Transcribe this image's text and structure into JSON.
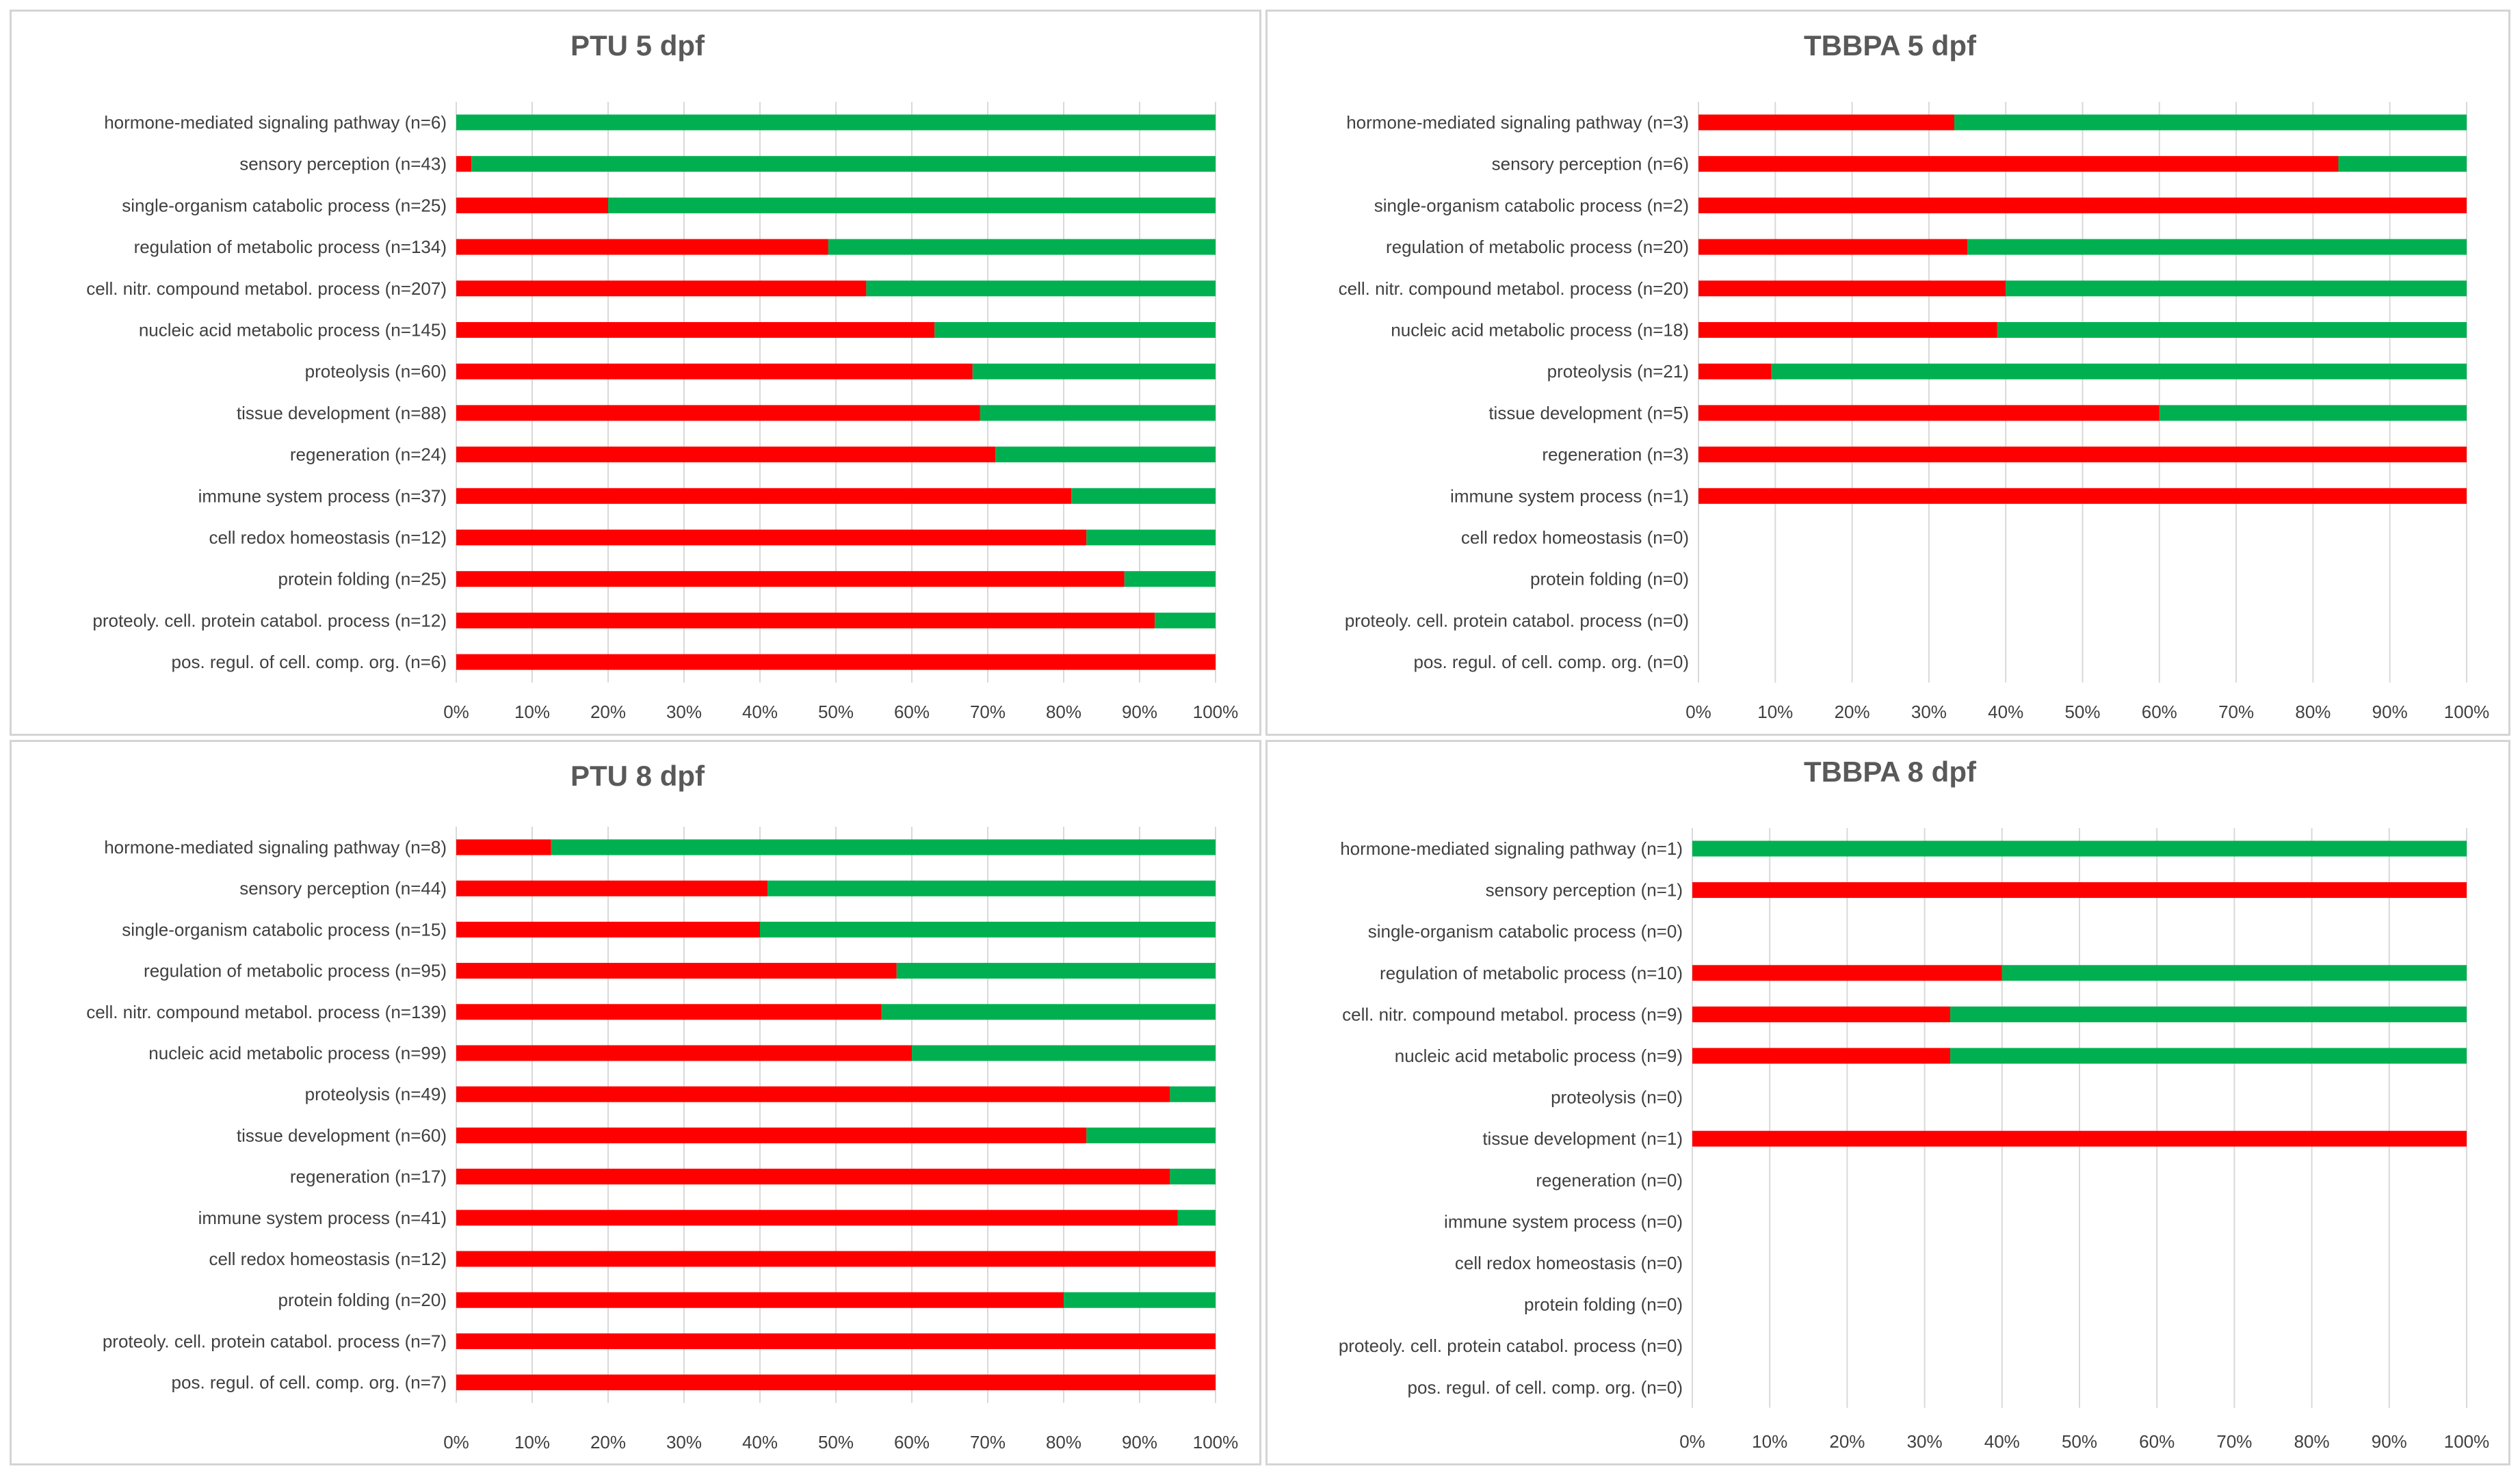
{
  "colors": {
    "negative": "#ff0000",
    "positive": "#00b050",
    "grid": "#d9d9d9",
    "text": "#404040",
    "title": "#595959"
  },
  "chart_data": [
    {
      "type": "bar",
      "orientation": "horizontal",
      "stacked": "percent",
      "title": "PTU 5 dpf",
      "categories": [
        "hormone-mediated signaling pathway (n=6)",
        "sensory perception (n=43)",
        "single-organism catabolic process (n=25)",
        "regulation of metabolic process (n=134)",
        "cell. nitr. compound metabol. process (n=207)",
        "nucleic acid metabolic process (n=145)",
        "proteolysis (n=60)",
        "tissue development (n=88)",
        "regeneration (n=24)",
        "immune system process (n=37)",
        "cell redox homeostasis (n=12)",
        "protein folding (n=25)",
        "proteoly. cell. protein catabol. process (n=12)",
        "pos. regul. of cell. comp. org. (n=6)"
      ],
      "series": [
        {
          "color": "#ff0000",
          "values": [
            0,
            2,
            20,
            49,
            54,
            63,
            68,
            69,
            71,
            81,
            83,
            88,
            92,
            100
          ]
        },
        {
          "color": "#00b050",
          "values": [
            100,
            98,
            80,
            51,
            46,
            37,
            32,
            31,
            29,
            19,
            17,
            12,
            8,
            0
          ]
        }
      ],
      "xlim": [
        0,
        100
      ],
      "xticks": [
        "0%",
        "10%",
        "20%",
        "30%",
        "40%",
        "50%",
        "60%",
        "70%",
        "80%",
        "90%",
        "100%"
      ],
      "grid": true
    },
    {
      "type": "bar",
      "orientation": "horizontal",
      "stacked": "percent",
      "title": "TBBPA 5 dpf",
      "categories": [
        "hormone-mediated signaling pathway (n=3)",
        "sensory perception (n=6)",
        "single-organism catabolic process (n=2)",
        "regulation of metabolic process (n=20)",
        "cell. nitr. compound metabol. process (n=20)",
        "nucleic acid metabolic process (n=18)",
        "proteolysis (n=21)",
        "tissue development (n=5)",
        "regeneration (n=3)",
        "immune system process (n=1)",
        "cell redox homeostasis (n=0)",
        "protein folding (n=0)",
        "proteoly. cell. protein catabol. process (n=0)",
        "pos. regul. of cell. comp. org. (n=0)"
      ],
      "series": [
        {
          "color": "#ff0000",
          "values": [
            33.3,
            83.3,
            100,
            35,
            40,
            38.9,
            9.5,
            60,
            100,
            100,
            0,
            0,
            0,
            0
          ]
        },
        {
          "color": "#00b050",
          "values": [
            66.7,
            16.7,
            0,
            65,
            60,
            61.1,
            90.5,
            40,
            0,
            0,
            0,
            0,
            0,
            0
          ]
        }
      ],
      "xlim": [
        0,
        100
      ],
      "xticks": [
        "0%",
        "10%",
        "20%",
        "30%",
        "40%",
        "50%",
        "60%",
        "70%",
        "80%",
        "90%",
        "100%"
      ],
      "grid": true
    },
    {
      "type": "bar",
      "orientation": "horizontal",
      "stacked": "percent",
      "title": "PTU 8 dpf",
      "categories": [
        "hormone-mediated signaling pathway (n=8)",
        "sensory perception (n=44)",
        "single-organism catabolic process (n=15)",
        "regulation of metabolic process (n=95)",
        "cell. nitr. compound metabol. process (n=139)",
        "nucleic acid metabolic process (n=99)",
        "proteolysis (n=49)",
        "tissue development (n=60)",
        "regeneration (n=17)",
        "immune system process (n=41)",
        "cell redox homeostasis (n=12)",
        "protein folding (n=20)",
        "proteoly. cell. protein catabol. process (n=7)",
        "pos. regul. of cell. comp. org. (n=7)"
      ],
      "series": [
        {
          "color": "#ff0000",
          "values": [
            12.5,
            41,
            40,
            58,
            56,
            60,
            94,
            83,
            94,
            95,
            100,
            80,
            100,
            100
          ]
        },
        {
          "color": "#00b050",
          "values": [
            87.5,
            59,
            60,
            42,
            44,
            40,
            6,
            17,
            6,
            5,
            0,
            20,
            0,
            0
          ]
        }
      ],
      "xlim": [
        0,
        100
      ],
      "xticks": [
        "0%",
        "10%",
        "20%",
        "30%",
        "40%",
        "50%",
        "60%",
        "70%",
        "80%",
        "90%",
        "100%"
      ],
      "grid": true
    },
    {
      "type": "bar",
      "orientation": "horizontal",
      "stacked": "percent",
      "title": "TBBPA 8 dpf",
      "categories": [
        "hormone-mediated signaling pathway (n=1)",
        "sensory perception (n=1)",
        "single-organism catabolic process (n=0)",
        "regulation of metabolic process (n=10)",
        "cell. nitr. compound metabol. process (n=9)",
        "nucleic acid metabolic process (n=9)",
        "proteolysis (n=0)",
        "tissue development (n=1)",
        "regeneration (n=0)",
        "immune system process (n=0)",
        "cell redox homeostasis (n=0)",
        "protein folding (n=0)",
        "proteoly. cell. protein catabol. process (n=0)",
        "pos. regul. of cell. comp. org. (n=0)"
      ],
      "series": [
        {
          "color": "#ff0000",
          "values": [
            0,
            100,
            0,
            40,
            33.3,
            33.3,
            0,
            100,
            0,
            0,
            0,
            0,
            0,
            0
          ]
        },
        {
          "color": "#00b050",
          "values": [
            100,
            0,
            0,
            60,
            66.7,
            66.7,
            0,
            0,
            0,
            0,
            0,
            0,
            0,
            0
          ]
        }
      ],
      "xlim": [
        0,
        100
      ],
      "xticks": [
        "0%",
        "10%",
        "20%",
        "30%",
        "40%",
        "50%",
        "60%",
        "70%",
        "80%",
        "90%",
        "100%"
      ],
      "grid": true
    }
  ]
}
